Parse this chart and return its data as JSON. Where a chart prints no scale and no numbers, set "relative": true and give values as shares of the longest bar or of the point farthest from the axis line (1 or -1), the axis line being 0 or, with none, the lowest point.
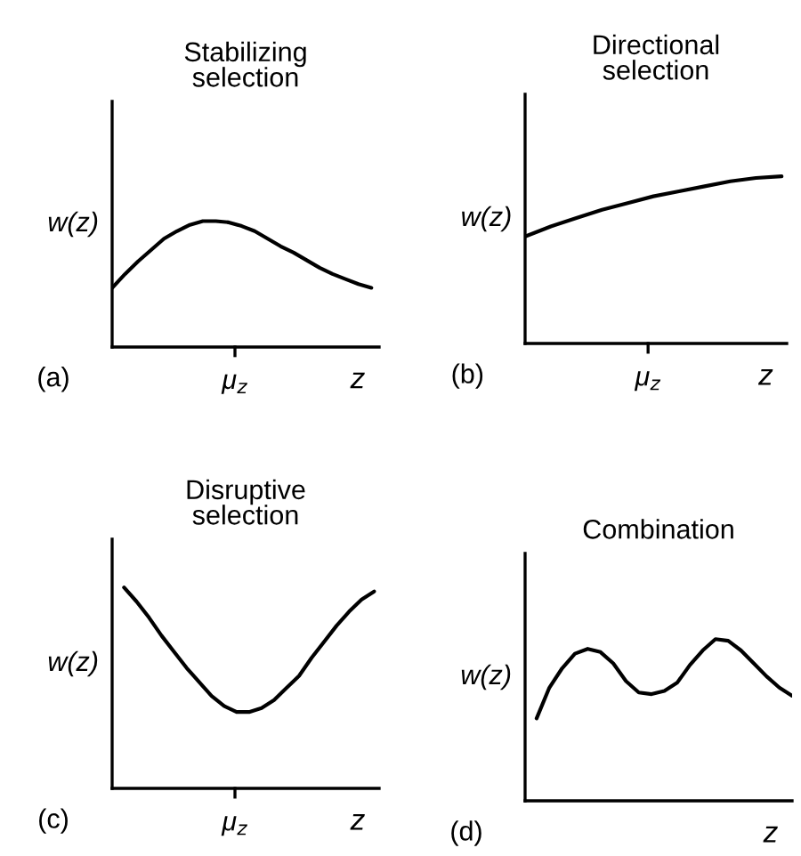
{
  "chart_data": [
    {
      "type": "line",
      "title": "Stabilizing\nselection",
      "xlabel": "z",
      "ylabel": "w(z)",
      "relative": true,
      "annotations": [
        "(a)",
        "μ$_{z}$"
      ],
      "categories": [
        null,
        null,
        null,
        null,
        null,
        null,
        null,
        null,
        null,
        null,
        null,
        null,
        null,
        null,
        null,
        null,
        null,
        null,
        null,
        null,
        null
      ],
      "series": [
        {
          "color": "#000000",
          "values": [
            0.47,
            0.58,
            0.68,
            0.77,
            0.86,
            0.92,
            0.97,
            1.0,
            1.0,
            0.99,
            0.96,
            0.92,
            0.86,
            0.8,
            0.75,
            0.69,
            0.63,
            0.58,
            0.54,
            0.5,
            0.47
          ]
        }
      ]
    },
    {
      "type": "line",
      "title": "Directional\nselection",
      "xlabel": "z",
      "ylabel": "w(z)",
      "relative": true,
      "annotations": [
        "(b)",
        "μ$_{z}$"
      ],
      "categories": [
        null,
        null,
        null,
        null,
        null,
        null,
        null,
        null,
        null,
        null,
        null
      ],
      "series": [
        {
          "color": "#000000",
          "values": [
            0.64,
            0.7,
            0.75,
            0.8,
            0.84,
            0.88,
            0.91,
            0.94,
            0.97,
            0.99,
            1.0
          ]
        }
      ]
    },
    {
      "type": "line",
      "title": "Disruptive\nselection",
      "xlabel": "z",
      "ylabel": "w(z)",
      "relative": true,
      "annotations": [
        "(c)",
        "μ$_{z}$"
      ],
      "categories": [
        null,
        null,
        null,
        null,
        null,
        null,
        null,
        null,
        null,
        null,
        null,
        null,
        null,
        null,
        null,
        null,
        null,
        null,
        null,
        null,
        null
      ],
      "series": [
        {
          "color": "#000000",
          "values": [
            1.0,
            0.93,
            0.85,
            0.76,
            0.68,
            0.6,
            0.53,
            0.46,
            0.41,
            0.38,
            0.38,
            0.4,
            0.44,
            0.5,
            0.56,
            0.65,
            0.73,
            0.81,
            0.88,
            0.94,
            0.98
          ]
        }
      ]
    },
    {
      "type": "line",
      "title": "Combination",
      "xlabel": "z",
      "ylabel": "w(z)",
      "relative": true,
      "annotations": [
        "(d)"
      ],
      "categories": [
        null,
        null,
        null,
        null,
        null,
        null,
        null,
        null,
        null,
        null,
        null,
        null,
        null,
        null,
        null,
        null,
        null,
        null,
        null,
        null,
        null
      ],
      "series": [
        {
          "color": "#000000",
          "values": [
            0.51,
            0.7,
            0.82,
            0.91,
            0.94,
            0.92,
            0.85,
            0.74,
            0.67,
            0.66,
            0.68,
            0.73,
            0.84,
            0.93,
            1.0,
            0.99,
            0.93,
            0.85,
            0.77,
            0.7,
            0.65
          ]
        }
      ]
    }
  ]
}
